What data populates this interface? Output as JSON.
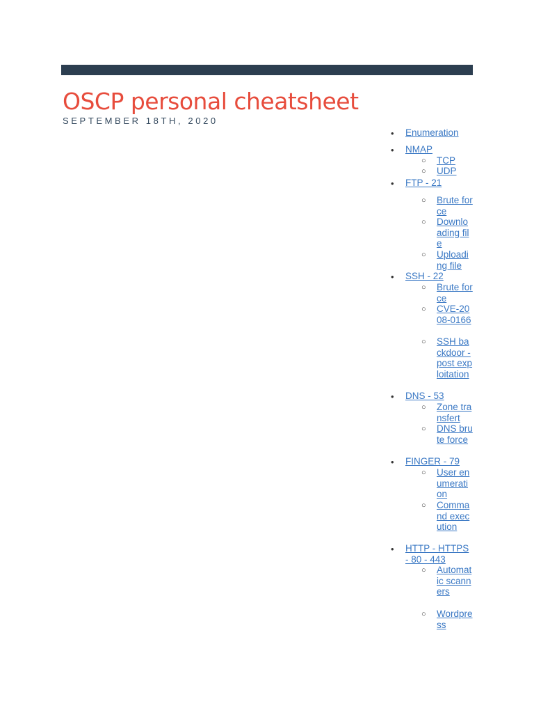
{
  "header": {
    "title": "OSCP personal cheatsheet",
    "date": "SEPTEMBER 18TH, 2020"
  },
  "colors": {
    "bar": "#2c3e50",
    "title": "#e74c3c",
    "link": "#3a78c4"
  },
  "toc": {
    "enumeration": "Enumeration",
    "nmap": {
      "label": "NMAP",
      "tcp": "TCP",
      "udp": "UDP"
    },
    "ftp": {
      "label": "FTP - 21",
      "brute_force": "Brute force",
      "downloading_file": "Downloading file",
      "uploading_file": "Uploading file"
    },
    "ssh": {
      "label": "SSH - 22",
      "brute_force": "Brute force",
      "cve": "CVE-2008-0166",
      "backdoor": "SSH backdoor - post exploitation"
    },
    "dns": {
      "label": "DNS - 53",
      "zone_transfert": "Zone transfert",
      "brute_force": "DNS brute force"
    },
    "finger": {
      "label": "FINGER - 79",
      "user_enum": "User enumeration",
      "command_exec": "Command execution"
    },
    "http": {
      "label": "HTTP  -  HTTPS - 80 - 443",
      "scanners": "Automatic scanners",
      "wordpress": "Wordpress"
    }
  }
}
